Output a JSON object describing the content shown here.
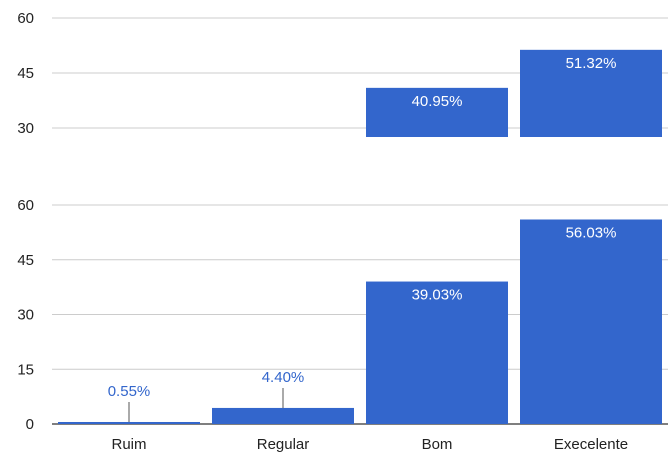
{
  "chart_data": [
    {
      "type": "bar",
      "categories": [
        "Ruim",
        "Regular",
        "Bom",
        "Execelente"
      ],
      "values": [
        null,
        null,
        40.95,
        51.32
      ],
      "data_labels": [
        "",
        "",
        "40.95%",
        "51.32%"
      ],
      "ylim": [
        30,
        60
      ],
      "yticks": [
        "30",
        "45",
        "60"
      ],
      "grid": true,
      "color": "#3366cc"
    },
    {
      "type": "bar",
      "categories": [
        "Ruim",
        "Regular",
        "Bom",
        "Execelente"
      ],
      "values": [
        0.55,
        4.4,
        39.03,
        56.03
      ],
      "data_labels": [
        "0.55%",
        "4.40%",
        "39.03%",
        "56.03%"
      ],
      "ylim": [
        0,
        60
      ],
      "yticks": [
        "0",
        "15",
        "30",
        "45",
        "60"
      ],
      "grid": true,
      "color": "#3366cc"
    }
  ],
  "colors": {
    "bar": "#3366cc",
    "grid": "#cccccc",
    "axis": "#333333",
    "label_inside": "#ffffff",
    "label_outside": "#3366cc",
    "tick_text": "#222222"
  }
}
